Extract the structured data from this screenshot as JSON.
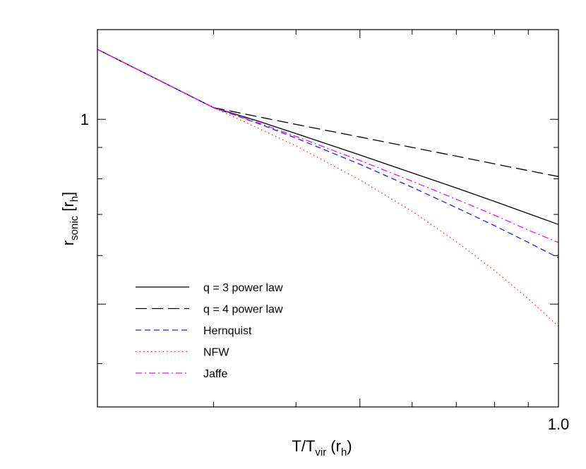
{
  "chart_data": {
    "type": "line",
    "title": "",
    "xlabel": {
      "main": "T/T",
      "sub": "vir",
      "tail": " (r",
      "tail_sub": "h",
      "end": ")"
    },
    "ylabel": {
      "main": "r",
      "sub": "sonic",
      "tail": " [r",
      "tail_sub": "h",
      "end": "]"
    },
    "xscale": "log",
    "yscale": "log",
    "xlim": [
      0.2,
      1.0
    ],
    "ylim": [
      0.34,
      1.4
    ],
    "x_tick_labels": [
      {
        "value": 1.0,
        "label": "1.0"
      }
    ],
    "y_tick_labels": [
      {
        "value": 1,
        "label": "1"
      }
    ],
    "legend_placement": "bottom-left",
    "grid": false,
    "series": [
      {
        "name": "q = 3 power law",
        "color": "#000000",
        "dash": "solid",
        "x": [
          0.2,
          0.25,
          0.3,
          0.35,
          0.4,
          0.5,
          0.6,
          0.7,
          0.8,
          0.9,
          1.0
        ],
        "y": [
          1.3,
          1.153,
          1.045,
          0.994,
          0.948,
          0.875,
          0.818,
          0.773,
          0.735,
          0.702,
          0.674
        ]
      },
      {
        "name": "q = 4 power law",
        "color": "#000000",
        "dash": "longdash",
        "x": [
          0.2,
          0.25,
          0.3,
          0.35,
          0.4,
          0.5,
          0.6,
          0.7,
          0.8,
          0.9,
          1.0
        ],
        "y": [
          1.3,
          1.153,
          1.045,
          1.01,
          0.981,
          0.936,
          0.9,
          0.871,
          0.846,
          0.825,
          0.807
        ]
      },
      {
        "name": "Hernquist",
        "color": "#1f1fff",
        "dash": "dash",
        "x": [
          0.2,
          0.25,
          0.3,
          0.35,
          0.4,
          0.5,
          0.6,
          0.7,
          0.8,
          0.9,
          1.0
        ],
        "y": [
          1.3,
          1.153,
          1.045,
          0.985,
          0.932,
          0.845,
          0.775,
          0.718,
          0.671,
          0.63,
          0.595
        ]
      },
      {
        "name": "NFW",
        "color": "#ff2a1a",
        "dash": "dot",
        "x": [
          0.2,
          0.25,
          0.3,
          0.35,
          0.4,
          0.5,
          0.6,
          0.7,
          0.8,
          0.9,
          1.0
        ],
        "y": [
          1.3,
          1.153,
          1.045,
          0.968,
          0.905,
          0.797,
          0.708,
          0.632,
          0.567,
          0.51,
          0.46
        ]
      },
      {
        "name": "Jaffe",
        "color": "#ee11ee",
        "dash": "dashdot",
        "x": [
          0.2,
          0.25,
          0.3,
          0.35,
          0.4,
          0.5,
          0.6,
          0.7,
          0.8,
          0.9,
          1.0
        ],
        "y": [
          1.3,
          1.153,
          1.045,
          0.988,
          0.938,
          0.857,
          0.793,
          0.741,
          0.698,
          0.66,
          0.63
        ]
      }
    ]
  }
}
